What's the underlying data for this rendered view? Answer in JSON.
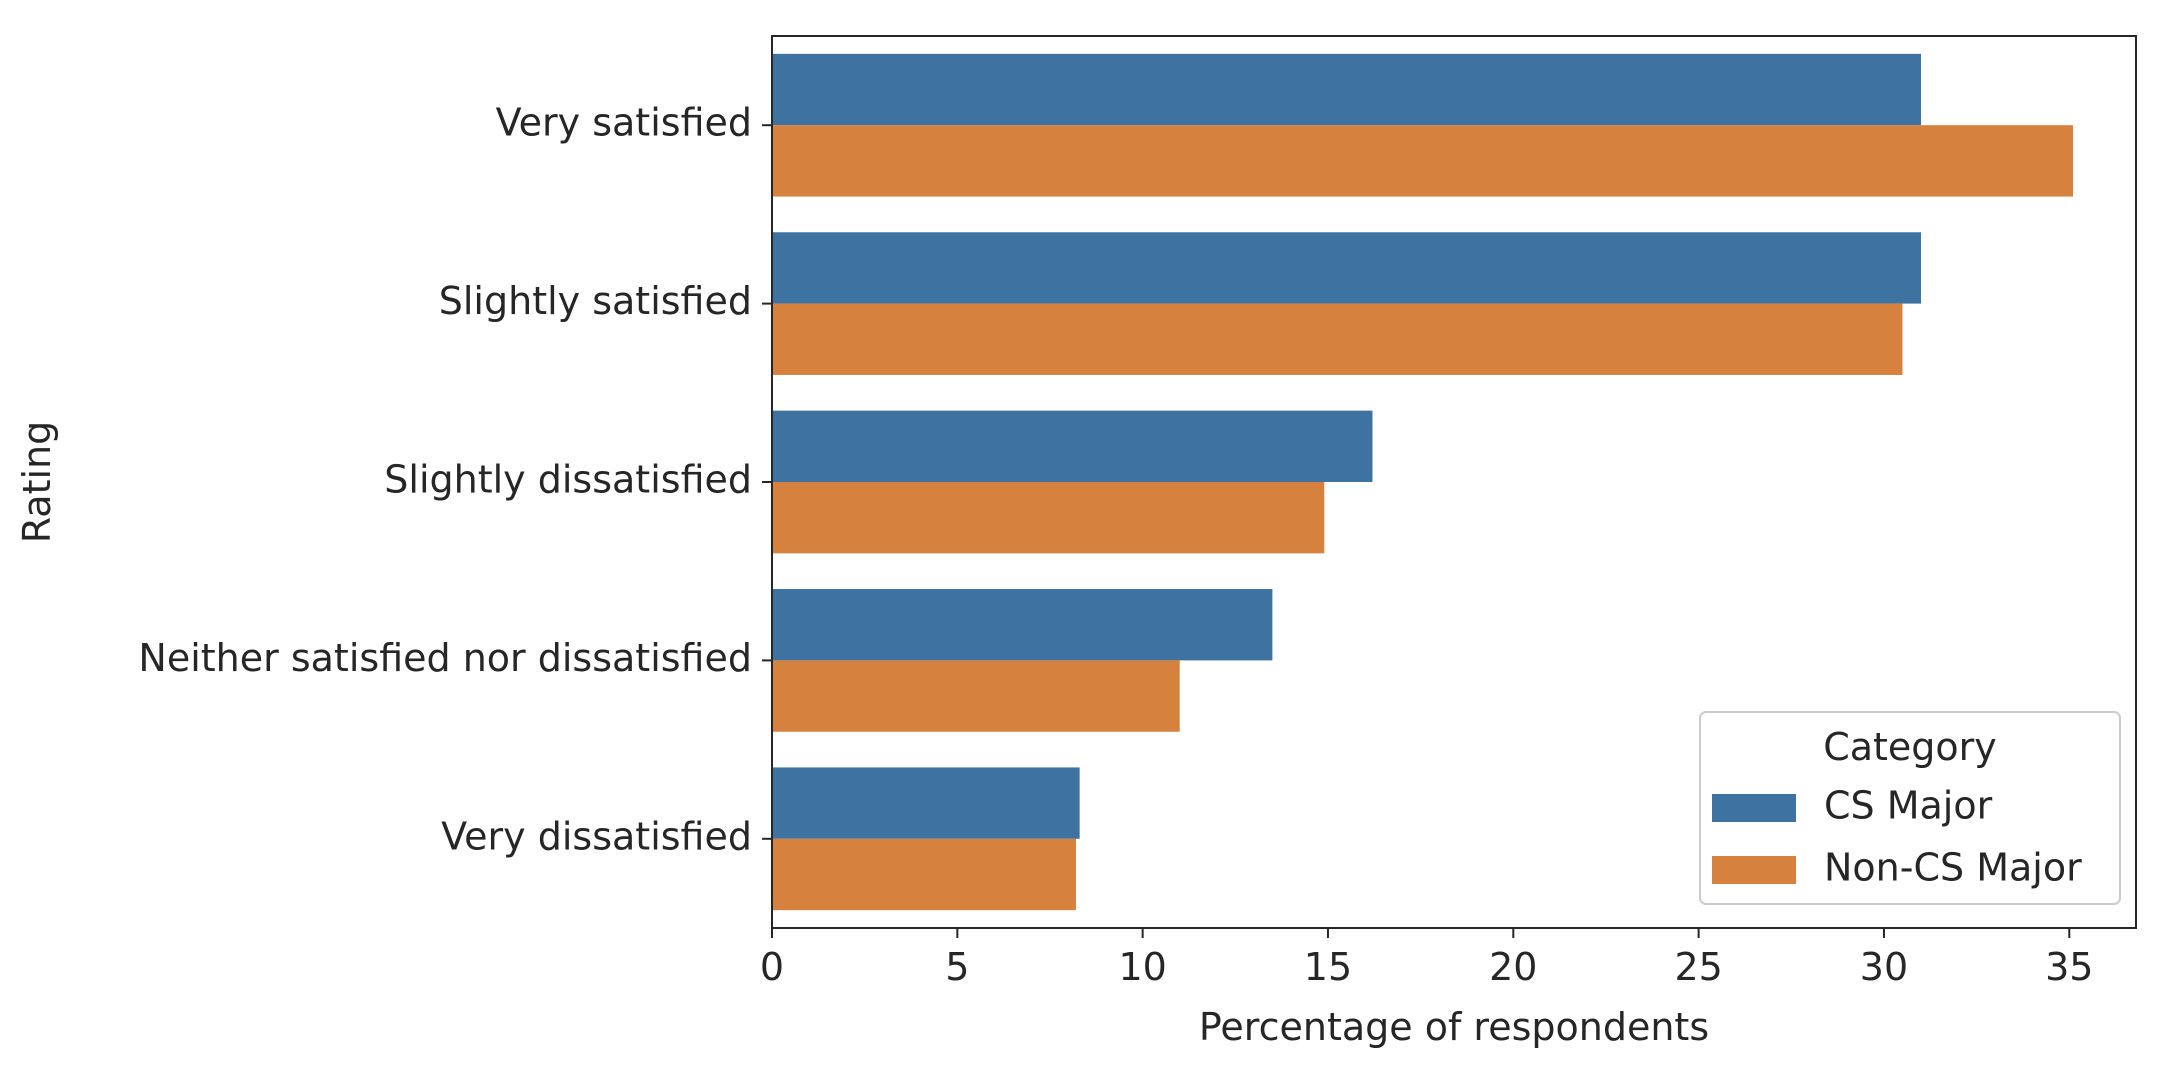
{
  "chart_data": {
    "type": "bar",
    "orientation": "horizontal",
    "categories": [
      "Very satisfied",
      "Slightly satisfied",
      "Slightly dissatisfied",
      "Neither satisfied nor dissatisfied",
      "Very dissatisfied"
    ],
    "series": [
      {
        "name": "CS Major",
        "color": "#3e72a0",
        "values": [
          31.0,
          31.0,
          16.2,
          13.5,
          8.3
        ]
      },
      {
        "name": "Non-CS Major",
        "color": "#d6823e",
        "values": [
          35.1,
          30.5,
          14.9,
          11.0,
          8.2
        ]
      }
    ],
    "xlabel": "Percentage of respondents",
    "ylabel": "Rating",
    "xlim": [
      0,
      36.8
    ],
    "xticks": [
      0,
      5,
      10,
      15,
      20,
      25,
      30,
      35
    ],
    "grid": false,
    "legend": {
      "title": "Category",
      "placement": "lower-right"
    }
  }
}
